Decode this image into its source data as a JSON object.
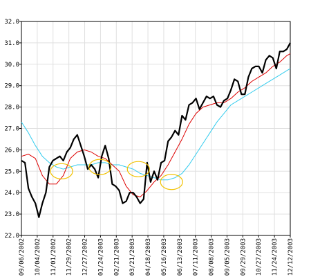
{
  "chart_data": {
    "type": "line",
    "title": "",
    "xlabel": "",
    "ylabel": "",
    "ylim": [
      22.0,
      32.0
    ],
    "grid": true,
    "y_ticks": [
      "22.0",
      "23.0",
      "24.0",
      "25.0",
      "26.0",
      "27.0",
      "28.0",
      "29.0",
      "30.0",
      "31.0",
      "32.0"
    ],
    "x_tick_labels": [
      "09/06/2002",
      "10/04/2002",
      "11/01/2002",
      "11/29/2002",
      "12/27/2002",
      "01/24/2003",
      "02/21/2003",
      "03/21/2003",
      "04/18/2003",
      "05/16/2003",
      "06/13/2003",
      "07/11/2003",
      "08/08/2003",
      "09/05/2003",
      "09/29/2003",
      "10/27/2003",
      "11/24/2003",
      "12/12/2003"
    ],
    "colors": {
      "price": "#000000",
      "ma_short": "#dd0000",
      "ma_long": "#33ccee",
      "highlight": "#f2c200",
      "grid": "#e0e0e0"
    },
    "series": [
      {
        "color": "#000000",
        "values": [
          [
            0,
            25.5
          ],
          [
            2,
            25.4
          ],
          [
            4,
            24.2
          ],
          [
            6,
            23.8
          ],
          [
            8,
            23.5
          ],
          [
            10,
            22.85
          ],
          [
            12,
            23.5
          ],
          [
            14,
            24.0
          ],
          [
            16,
            25.2
          ],
          [
            18,
            25.5
          ],
          [
            20,
            25.6
          ],
          [
            22,
            25.7
          ],
          [
            24,
            25.5
          ],
          [
            26,
            25.9
          ],
          [
            28,
            26.1
          ],
          [
            30,
            26.5
          ],
          [
            32,
            26.7
          ],
          [
            34,
            26.2
          ],
          [
            36,
            25.7
          ],
          [
            38,
            25.1
          ],
          [
            40,
            25.3
          ],
          [
            42,
            25.1
          ],
          [
            44,
            24.7
          ],
          [
            46,
            25.7
          ],
          [
            48,
            26.2
          ],
          [
            50,
            25.6
          ],
          [
            52,
            24.4
          ],
          [
            54,
            24.3
          ],
          [
            56,
            24.1
          ],
          [
            58,
            23.5
          ],
          [
            60,
            23.6
          ],
          [
            62,
            24.0
          ],
          [
            64,
            24.0
          ],
          [
            66,
            23.8
          ],
          [
            68,
            23.5
          ],
          [
            70,
            23.7
          ],
          [
            72,
            25.4
          ],
          [
            74,
            24.5
          ],
          [
            76,
            25.0
          ],
          [
            78,
            24.6
          ],
          [
            80,
            25.4
          ],
          [
            82,
            25.5
          ],
          [
            84,
            26.4
          ],
          [
            86,
            26.6
          ],
          [
            88,
            26.9
          ],
          [
            90,
            26.7
          ],
          [
            92,
            27.6
          ],
          [
            94,
            27.4
          ],
          [
            96,
            28.1
          ],
          [
            98,
            28.2
          ],
          [
            100,
            28.4
          ],
          [
            102,
            27.9
          ],
          [
            104,
            28.2
          ],
          [
            106,
            28.5
          ],
          [
            108,
            28.4
          ],
          [
            110,
            28.5
          ],
          [
            112,
            28.1
          ],
          [
            114,
            28.0
          ],
          [
            116,
            28.3
          ],
          [
            118,
            28.4
          ],
          [
            120,
            28.8
          ],
          [
            122,
            29.3
          ],
          [
            124,
            29.2
          ],
          [
            126,
            28.6
          ],
          [
            128,
            28.6
          ],
          [
            130,
            29.4
          ],
          [
            132,
            29.8
          ],
          [
            134,
            29.9
          ],
          [
            136,
            29.9
          ],
          [
            138,
            29.6
          ],
          [
            140,
            30.2
          ],
          [
            142,
            30.4
          ],
          [
            144,
            30.3
          ],
          [
            146,
            29.8
          ],
          [
            148,
            30.6
          ],
          [
            150,
            30.6
          ],
          [
            152,
            30.7
          ],
          [
            154,
            31.0
          ]
        ]
      },
      {
        "color": "#dd0000",
        "values": [
          [
            0,
            25.7
          ],
          [
            4,
            25.8
          ],
          [
            8,
            25.6
          ],
          [
            12,
            24.8
          ],
          [
            16,
            24.4
          ],
          [
            20,
            24.4
          ],
          [
            24,
            24.8
          ],
          [
            28,
            25.6
          ],
          [
            32,
            25.9
          ],
          [
            36,
            26.0
          ],
          [
            40,
            25.9
          ],
          [
            44,
            25.7
          ],
          [
            48,
            25.6
          ],
          [
            52,
            25.3
          ],
          [
            56,
            25.0
          ],
          [
            60,
            24.3
          ],
          [
            64,
            23.9
          ],
          [
            68,
            23.8
          ],
          [
            72,
            24.1
          ],
          [
            76,
            24.5
          ],
          [
            80,
            24.8
          ],
          [
            84,
            25.3
          ],
          [
            88,
            25.9
          ],
          [
            92,
            26.5
          ],
          [
            96,
            27.2
          ],
          [
            100,
            27.7
          ],
          [
            104,
            28.0
          ],
          [
            108,
            28.1
          ],
          [
            112,
            28.2
          ],
          [
            116,
            28.2
          ],
          [
            120,
            28.4
          ],
          [
            124,
            28.7
          ],
          [
            128,
            28.9
          ],
          [
            132,
            29.2
          ],
          [
            136,
            29.4
          ],
          [
            140,
            29.6
          ],
          [
            144,
            29.9
          ],
          [
            148,
            30.1
          ],
          [
            152,
            30.4
          ],
          [
            154,
            30.5
          ]
        ]
      },
      {
        "color": "#33ccee",
        "values": [
          [
            0,
            27.3
          ],
          [
            4,
            26.8
          ],
          [
            8,
            26.2
          ],
          [
            12,
            25.7
          ],
          [
            16,
            25.4
          ],
          [
            20,
            25.2
          ],
          [
            24,
            25.1
          ],
          [
            28,
            25.2
          ],
          [
            32,
            25.3
          ],
          [
            36,
            25.3
          ],
          [
            40,
            25.3
          ],
          [
            44,
            25.4
          ],
          [
            48,
            25.4
          ],
          [
            52,
            25.3
          ],
          [
            56,
            25.3
          ],
          [
            60,
            25.2
          ],
          [
            64,
            25.1
          ],
          [
            68,
            24.9
          ],
          [
            72,
            24.8
          ],
          [
            76,
            24.7
          ],
          [
            80,
            24.6
          ],
          [
            84,
            24.6
          ],
          [
            88,
            24.7
          ],
          [
            92,
            24.9
          ],
          [
            96,
            25.3
          ],
          [
            100,
            25.8
          ],
          [
            104,
            26.3
          ],
          [
            108,
            26.8
          ],
          [
            112,
            27.3
          ],
          [
            116,
            27.7
          ],
          [
            120,
            28.1
          ],
          [
            124,
            28.3
          ],
          [
            128,
            28.5
          ],
          [
            132,
            28.7
          ],
          [
            136,
            28.9
          ],
          [
            140,
            29.1
          ],
          [
            144,
            29.3
          ],
          [
            148,
            29.5
          ],
          [
            152,
            29.7
          ],
          [
            154,
            29.8
          ]
        ]
      }
    ],
    "x_range": [
      0,
      154
    ],
    "highlights": [
      {
        "x": 23,
        "y": 25.0
      },
      {
        "x": 45,
        "y": 25.2
      },
      {
        "x": 67,
        "y": 25.1
      },
      {
        "x": 86,
        "y": 24.5
      }
    ]
  }
}
